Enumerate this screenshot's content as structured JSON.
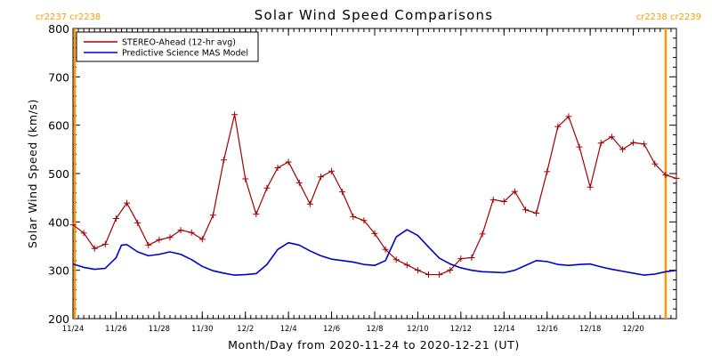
{
  "chart_data": {
    "type": "line",
    "title": "Solar Wind Speed Comparisons",
    "xlabel": "Month/Day from 2020-11-24 to 2020-12-21 (UT)",
    "ylabel": "Solar Wind Speed (km/s)",
    "xlim": [
      "2020-11-24",
      "2020-12-22"
    ],
    "ylim": [
      200,
      800
    ],
    "yticks": [
      200,
      300,
      400,
      500,
      600,
      700,
      800
    ],
    "xtick_labels": [
      {
        "label": "11/24",
        "date": "2020-11-24"
      },
      {
        "label": "11/26",
        "date": "2020-11-26"
      },
      {
        "label": "11/28",
        "date": "2020-11-28"
      },
      {
        "label": "11/30",
        "date": "2020-11-30"
      },
      {
        "label": "12/2",
        "date": "2020-12-02"
      },
      {
        "label": "12/4",
        "date": "2020-12-04"
      },
      {
        "label": "12/6",
        "date": "2020-12-06"
      },
      {
        "label": "12/8",
        "date": "2020-12-08"
      },
      {
        "label": "12/10",
        "date": "2020-12-10"
      },
      {
        "label": "12/12",
        "date": "2020-12-12"
      },
      {
        "label": "12/14",
        "date": "2020-12-14"
      },
      {
        "label": "12/16",
        "date": "2020-12-16"
      },
      {
        "label": "12/18",
        "date": "2020-12-18"
      },
      {
        "label": "12/20",
        "date": "2020-12-20"
      }
    ],
    "legend": {
      "position": "top-left",
      "entries": [
        {
          "name": "STEREO-Ahead (12-hr avg)",
          "color": "#a00000"
        },
        {
          "name": "Predictive Science MAS Model",
          "color": "#0000cc"
        }
      ]
    },
    "annotations": {
      "left_label": "cr2237 cr2238",
      "right_label": "cr2238 cr2239",
      "left_date": "2020-11-24",
      "right_date": "2020-12-21T12:00",
      "marker_color": "#ff9900"
    },
    "series": [
      {
        "name": "STEREO-Ahead (12-hr avg)",
        "color": "#a00000",
        "marker": "plus",
        "x": [
          "2020-11-24T00:00",
          "2020-11-24T12:00",
          "2020-11-25T00:00",
          "2020-11-25T12:00",
          "2020-11-26T00:00",
          "2020-11-26T12:00",
          "2020-11-27T00:00",
          "2020-11-27T12:00",
          "2020-11-28T00:00",
          "2020-11-28T12:00",
          "2020-11-29T00:00",
          "2020-11-29T12:00",
          "2020-11-30T00:00",
          "2020-11-30T12:00",
          "2020-12-01T00:00",
          "2020-12-01T12:00",
          "2020-12-02T00:00",
          "2020-12-02T12:00",
          "2020-12-03T00:00",
          "2020-12-03T12:00",
          "2020-12-04T00:00",
          "2020-12-04T12:00",
          "2020-12-05T00:00",
          "2020-12-05T12:00",
          "2020-12-06T00:00",
          "2020-12-06T12:00",
          "2020-12-07T00:00",
          "2020-12-07T12:00",
          "2020-12-08T00:00",
          "2020-12-08T12:00",
          "2020-12-09T00:00",
          "2020-12-09T12:00",
          "2020-12-10T00:00",
          "2020-12-10T12:00",
          "2020-12-11T00:00",
          "2020-12-11T12:00",
          "2020-12-12T00:00",
          "2020-12-12T12:00",
          "2020-12-13T00:00",
          "2020-12-13T12:00",
          "2020-12-14T00:00",
          "2020-12-14T12:00",
          "2020-12-15T00:00",
          "2020-12-15T12:00",
          "2020-12-16T00:00",
          "2020-12-16T12:00",
          "2020-12-17T00:00",
          "2020-12-17T12:00",
          "2020-12-18T00:00",
          "2020-12-18T12:00",
          "2020-12-19T00:00",
          "2020-12-19T12:00",
          "2020-12-20T00:00",
          "2020-12-20T12:00",
          "2020-12-21T00:00",
          "2020-12-21T12:00",
          "2020-12-22T00:00"
        ],
        "values": [
          394,
          377,
          345,
          354,
          407,
          439,
          398,
          352,
          363,
          368,
          383,
          378,
          364,
          414,
          528,
          622,
          489,
          416,
          470,
          512,
          524,
          481,
          437,
          493,
          505,
          462,
          411,
          403,
          376,
          343,
          322,
          311,
          300,
          291,
          291,
          300,
          324,
          326,
          375,
          446,
          442,
          463,
          425,
          418,
          504,
          597,
          618,
          555,
          472,
          563,
          576,
          550,
          564,
          561,
          520,
          497,
          490
        ]
      },
      {
        "name": "Predictive Science MAS Model",
        "color": "#0000cc",
        "marker": "none",
        "x": [
          "2020-11-24T00:00",
          "2020-11-24T12:00",
          "2020-11-25T00:00",
          "2020-11-25T12:00",
          "2020-11-26T00:00",
          "2020-11-26T06:00",
          "2020-11-26T12:00",
          "2020-11-27T00:00",
          "2020-11-27T12:00",
          "2020-11-28T00:00",
          "2020-11-28T12:00",
          "2020-11-29T00:00",
          "2020-11-29T12:00",
          "2020-11-30T00:00",
          "2020-11-30T12:00",
          "2020-12-01T00:00",
          "2020-12-01T12:00",
          "2020-12-02T00:00",
          "2020-12-02T12:00",
          "2020-12-03T00:00",
          "2020-12-03T12:00",
          "2020-12-04T00:00",
          "2020-12-04T12:00",
          "2020-12-05T00:00",
          "2020-12-05T12:00",
          "2020-12-06T00:00",
          "2020-12-06T12:00",
          "2020-12-07T00:00",
          "2020-12-07T12:00",
          "2020-12-08T00:00",
          "2020-12-08T12:00",
          "2020-12-09T00:00",
          "2020-12-09T12:00",
          "2020-12-10T00:00",
          "2020-12-10T12:00",
          "2020-12-11T00:00",
          "2020-12-11T12:00",
          "2020-12-12T00:00",
          "2020-12-12T12:00",
          "2020-12-13T00:00",
          "2020-12-13T12:00",
          "2020-12-14T00:00",
          "2020-12-14T12:00",
          "2020-12-15T00:00",
          "2020-12-15T12:00",
          "2020-12-16T00:00",
          "2020-12-16T12:00",
          "2020-12-17T00:00",
          "2020-12-17T12:00",
          "2020-12-18T00:00",
          "2020-12-18T12:00",
          "2020-12-19T00:00",
          "2020-12-19T12:00",
          "2020-12-20T00:00",
          "2020-12-20T12:00",
          "2020-12-21T00:00",
          "2020-12-21T12:00",
          "2020-12-22T00:00"
        ],
        "values": [
          313,
          306,
          302,
          304,
          326,
          352,
          353,
          338,
          330,
          333,
          338,
          333,
          322,
          308,
          299,
          294,
          290,
          291,
          293,
          312,
          343,
          357,
          352,
          340,
          330,
          323,
          320,
          317,
          312,
          310,
          320,
          369,
          384,
          372,
          348,
          325,
          313,
          305,
          300,
          297,
          296,
          295,
          300,
          310,
          320,
          318,
          312,
          310,
          312,
          313,
          307,
          302,
          298,
          294,
          290,
          292,
          297,
          300
        ]
      }
    ]
  }
}
